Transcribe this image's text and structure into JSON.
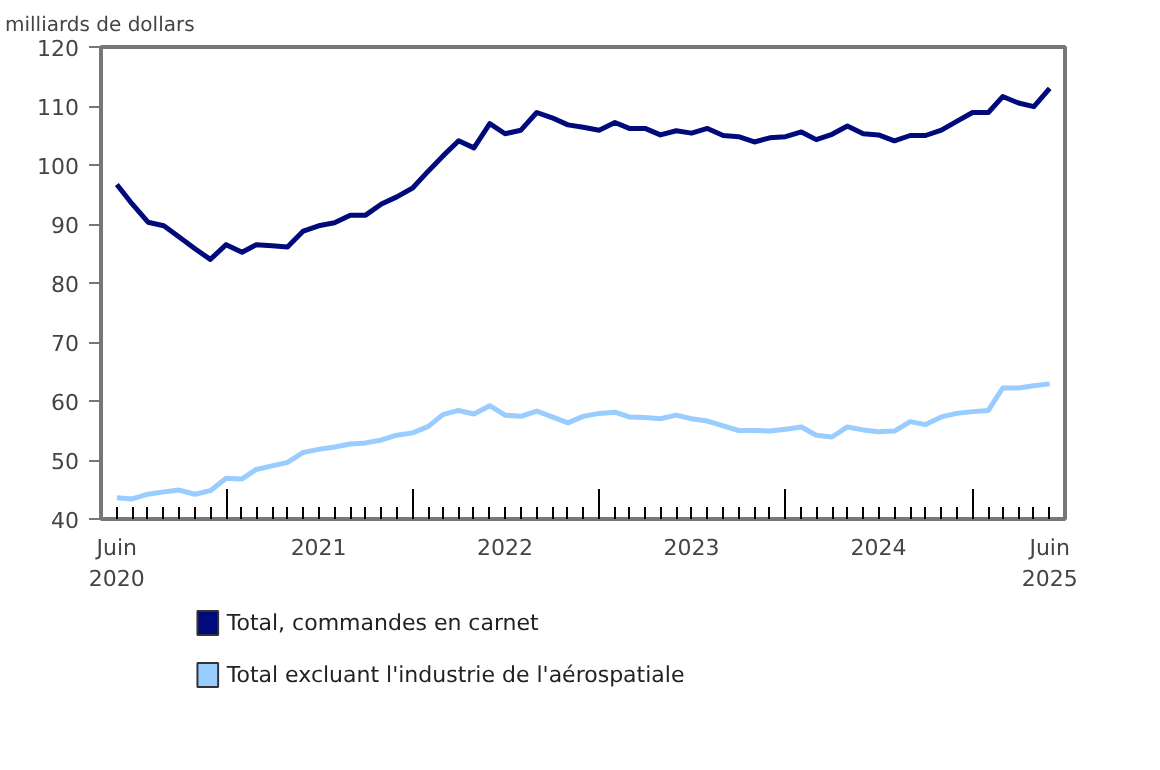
{
  "chart_data": {
    "type": "line",
    "ylabel": "milliards de dollars",
    "x": [
      "2020-06",
      "2020-07",
      "2020-08",
      "2020-09",
      "2020-10",
      "2020-11",
      "2020-12",
      "2021-01",
      "2021-02",
      "2021-03",
      "2021-04",
      "2021-05",
      "2021-06",
      "2021-07",
      "2021-08",
      "2021-09",
      "2021-10",
      "2021-11",
      "2021-12",
      "2022-01",
      "2022-02",
      "2022-03",
      "2022-04",
      "2022-05",
      "2022-06",
      "2022-07",
      "2022-08",
      "2022-09",
      "2022-10",
      "2022-11",
      "2022-12",
      "2023-01",
      "2023-02",
      "2023-03",
      "2023-04",
      "2023-05",
      "2023-06",
      "2023-07",
      "2023-08",
      "2023-09",
      "2023-10",
      "2023-11",
      "2023-12",
      "2024-01",
      "2024-02",
      "2024-03",
      "2024-04",
      "2024-05",
      "2024-06",
      "2024-07",
      "2024-08",
      "2024-09",
      "2024-10",
      "2024-11",
      "2024-12",
      "2025-01",
      "2025-02",
      "2025-03",
      "2025-04",
      "2025-05",
      "2025-06"
    ],
    "series": [
      {
        "name": "Total, commandes en carnet",
        "color": "#000a7a",
        "values": [
          96.7,
          93.4,
          90.3,
          89.7,
          87.8,
          85.8,
          84.0,
          86.5,
          85.2,
          86.5,
          86.3,
          86.1,
          88.8,
          89.7,
          90.2,
          91.5,
          91.5,
          93.4,
          94.6,
          96.1,
          99.0,
          101.5,
          104.1,
          102.9,
          107.0,
          105.3,
          105.9,
          108.9,
          108.0,
          106.8,
          106.4,
          105.9,
          107.2,
          106.2,
          106.2,
          105.1,
          105.8,
          105.4,
          106.2,
          105.0,
          104.8,
          103.9,
          104.6,
          104.8,
          105.6,
          104.3,
          105.2,
          106.6,
          105.3,
          105.1,
          104.1,
          105.0,
          105.0,
          105.9,
          107.4,
          108.9,
          108.9,
          111.6,
          110.5,
          109.9,
          113.0
        ]
      },
      {
        "name": "Total excluant l'industrie de l'aérospatiale",
        "color": "#99ccff",
        "values": [
          43.6,
          43.4,
          44.2,
          44.6,
          44.9,
          44.2,
          44.8,
          46.9,
          46.8,
          48.4,
          49.0,
          49.6,
          51.3,
          51.8,
          52.2,
          52.7,
          52.9,
          53.4,
          54.2,
          54.6,
          55.7,
          57.7,
          58.4,
          57.8,
          59.2,
          57.6,
          57.4,
          58.3,
          57.3,
          56.3,
          57.4,
          57.9,
          58.1,
          57.3,
          57.2,
          57.0,
          57.6,
          57.0,
          56.6,
          55.8,
          55.0,
          55.0,
          54.9,
          55.2,
          55.6,
          54.2,
          53.9,
          55.6,
          55.1,
          54.8,
          54.9,
          56.5,
          56.0,
          57.3,
          57.9,
          58.2,
          58.4,
          62.2,
          62.2,
          62.6,
          62.9
        ]
      }
    ],
    "xlim": [
      "2020-05",
      "2025-07"
    ],
    "xticks": [
      {
        "value": "2020-06",
        "label": "Juin\n2020"
      },
      {
        "value": "2021-07",
        "label": "2021"
      },
      {
        "value": "2022-07",
        "label": "2022"
      },
      {
        "value": "2023-07",
        "label": "2023"
      },
      {
        "value": "2024-07",
        "label": "2024"
      },
      {
        "value": "2025-06",
        "label": "Juin\n2025"
      },
      {
        "value": "2021-01",
        "label": null
      },
      {
        "value": "2022-01",
        "label": null
      },
      {
        "value": "2023-01",
        "label": null
      },
      {
        "value": "2024-01",
        "label": null
      },
      {
        "value": "2025-01",
        "label": null
      }
    ],
    "ylim": [
      40,
      120
    ],
    "yticks": [
      40,
      50,
      60,
      70,
      80,
      90,
      100,
      110,
      120
    ],
    "grid": false,
    "legend": "bottom",
    "marker": "none",
    "line_style": "solid"
  }
}
